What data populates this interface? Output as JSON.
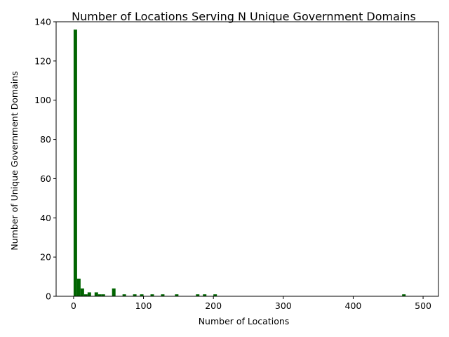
{
  "chart_data": {
    "type": "bar",
    "title": "Number of Locations Serving N Unique Government Domains",
    "xlabel": "Number of Locations",
    "ylabel": "Number of Unique Government Domains",
    "xlim": [
      -25,
      522
    ],
    "ylim": [
      0,
      140
    ],
    "bin_width": 5,
    "xticks": [
      0,
      100,
      200,
      300,
      400,
      500
    ],
    "yticks": [
      0,
      20,
      40,
      60,
      80,
      100,
      120,
      140
    ],
    "bar_color": "#006400",
    "grid": false,
    "legend": "none",
    "bins": [
      {
        "x": 0,
        "value": 136
      },
      {
        "x": 5,
        "value": 9
      },
      {
        "x": 10,
        "value": 4
      },
      {
        "x": 15,
        "value": 1
      },
      {
        "x": 20,
        "value": 2
      },
      {
        "x": 30,
        "value": 2
      },
      {
        "x": 35,
        "value": 1
      },
      {
        "x": 40,
        "value": 1
      },
      {
        "x": 55,
        "value": 4
      },
      {
        "x": 70,
        "value": 1
      },
      {
        "x": 85,
        "value": 1
      },
      {
        "x": 95,
        "value": 1
      },
      {
        "x": 110,
        "value": 1
      },
      {
        "x": 125,
        "value": 1
      },
      {
        "x": 145,
        "value": 1
      },
      {
        "x": 175,
        "value": 1
      },
      {
        "x": 185,
        "value": 1
      },
      {
        "x": 200,
        "value": 1
      },
      {
        "x": 470,
        "value": 1
      }
    ]
  }
}
